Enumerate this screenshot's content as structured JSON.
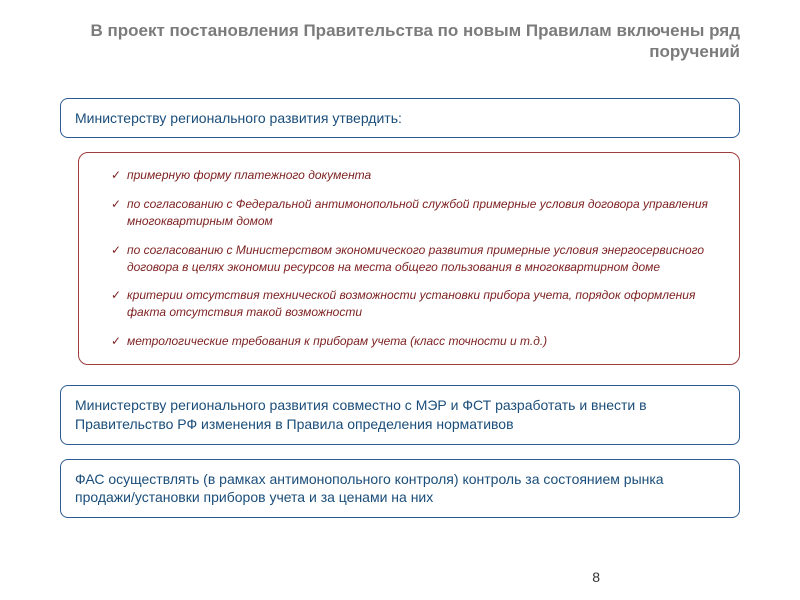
{
  "title": "В проект постановления Правительства по новым Правилам включены ряд поручений",
  "box1": {
    "text": "Министерству регионального развития утвердить:"
  },
  "checklist": {
    "items": [
      "примерную форму платежного документа",
      "по согласованию с Федеральной антимонопольной службой примерные условия договора управления многоквартирным домом",
      "по согласованию с Министерством экономического развития примерные условия энергосервисного договора в целях экономии ресурсов на места общего пользования в многоквартирном доме",
      "критерии отсутствия технической возможности установки прибора учета, порядок оформления факта отсутствия такой возможности",
      "метрологические требования к приборам учета (класс точности и т.д.)"
    ]
  },
  "box2": {
    "text": "Министерству регионального развития совместно с МЭР и  ФСТ разработать и внести в Правительство РФ изменения в Правила определения нормативов"
  },
  "box3": {
    "text": "ФАС осуществлять (в рамках антимонопольного контроля) контроль за состоянием рынка продажи/установки  приборов учета и за ценами на них"
  },
  "pageNumber": "8",
  "colors": {
    "title": "#7b7b7b",
    "boxBorder": "#2c5a93",
    "boxText": "#1a4d7a",
    "checklistBorder": "#a03d3d",
    "checklistText": "#7c1f1f",
    "background": "#ffffff"
  }
}
